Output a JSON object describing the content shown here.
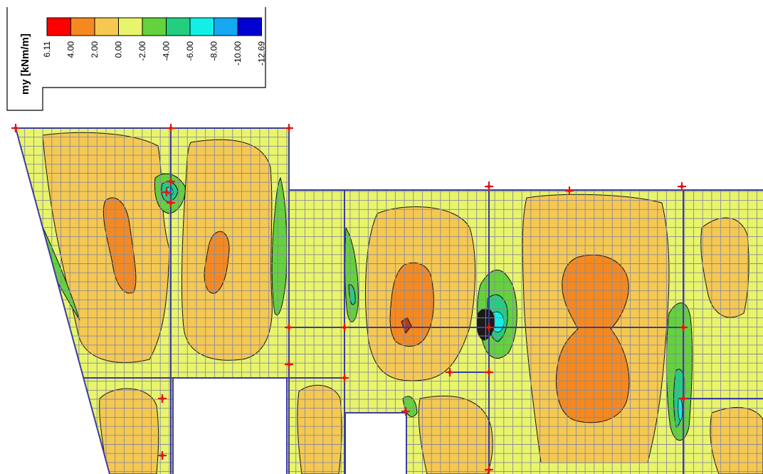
{
  "legend": {
    "title": "my [kNm/m]",
    "bins": [
      {
        "color": "#ff0000",
        "label": "6.11"
      },
      {
        "color": "#f5891f",
        "label": "4.00"
      },
      {
        "color": "#f5c851",
        "label": "2.00"
      },
      {
        "color": "#e8f56b",
        "label": "0.00"
      },
      {
        "color": "#63d23c",
        "label": "-2.00"
      },
      {
        "color": "#22cf7f",
        "label": "-4.00"
      },
      {
        "color": "#12f0e6",
        "label": "-6.00"
      },
      {
        "color": "#15a7f0",
        "label": "-8.00"
      },
      {
        "color": "#0000d0",
        "label": "-10.00"
      }
    ],
    "end_label": "-12.69"
  },
  "colors": {
    "mesh": "#8a8a9a",
    "edge": "#3c3ca0",
    "support": "#e01818",
    "contour_line": "#111111",
    "background": "#ffffff"
  }
}
